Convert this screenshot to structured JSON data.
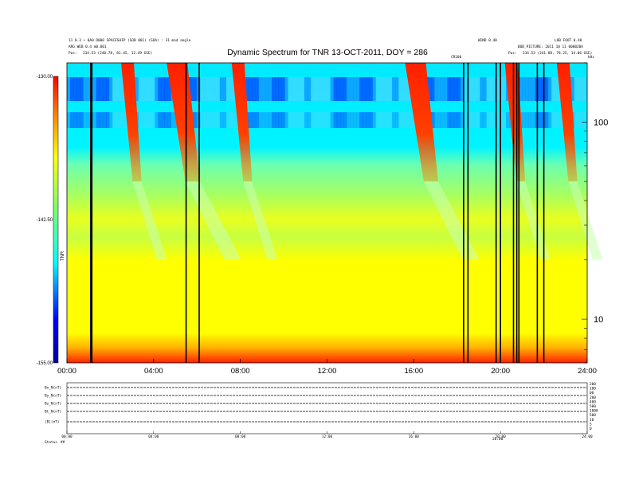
{
  "header": {
    "left_line1": "11 0.3 + 0A0 D000 SPACESHIP (SOB 001) (SOA) : 31 mod angle",
    "left_line2": "ARG WEB 0.4 m0.001",
    "left_pos_label": "Pos:",
    "left_pos_value": "234.53 (240.78, 81.45, 12.49 GSE)",
    "right_line_a": "WIND 0.40",
    "right_line_b": "LOB FOOT 0.40",
    "right_line2": "BOB_PICTURE: 2011 10 11 0000Z0A",
    "right_pos_label": "Pos:",
    "right_pos_value": "234.53 (241.88, 78.25, 14.06 GSE)",
    "marker_a": "CR100",
    "marker_b": "kHz"
  },
  "chart_data": {
    "type": "heatmap",
    "title": "Dynamic Spectrum for TNR 13-OCT-2011, DOY = 286",
    "x_ticks": [
      "00:00",
      "04:00",
      "08:00",
      "12:00",
      "16:00",
      "20:00",
      "24:00"
    ],
    "x_range_hours": [
      0,
      24
    ],
    "y_scale": "log",
    "y_range": [
      6,
      200
    ],
    "y_ticks": [
      10,
      100
    ],
    "colorbar": {
      "ticks": [
        "-130.00",
        "-142.50",
        "-155.00"
      ],
      "range": [
        -155,
        -130
      ],
      "label": "TNR",
      "colormap": [
        "#0000a0",
        "#0000ff",
        "#00ffff",
        "#80ff60",
        "#ffff00",
        "#ff8000",
        "#ff0000"
      ]
    },
    "bursts_hours": [
      2.5,
      4.6,
      7.6,
      15.6,
      20.2,
      22.6
    ],
    "data_gaps_hours": [
      1.1,
      1.15,
      5.5,
      6.1,
      18.3,
      18.5,
      19.8,
      20.0,
      20.6,
      20.75,
      20.85,
      21.7,
      22.0
    ]
  },
  "lower_panel": {
    "row_labels": [
      "Bx_N(nT)",
      "By_N(nT)",
      "Bz_N(nT)",
      "Bt_N(nT)",
      "|B|(nT)",
      "Status"
    ],
    "status_value": "##",
    "axis_ticks": [
      "00:00",
      "04:00",
      "08:00",
      "12:00",
      "16:00",
      "20:00",
      "24:00"
    ],
    "axis_marker": "20:00",
    "right_values": [
      "200",
      "100",
      "00",
      "200",
      "400",
      "500",
      "1000",
      "500",
      "10",
      "5",
      "0"
    ]
  }
}
